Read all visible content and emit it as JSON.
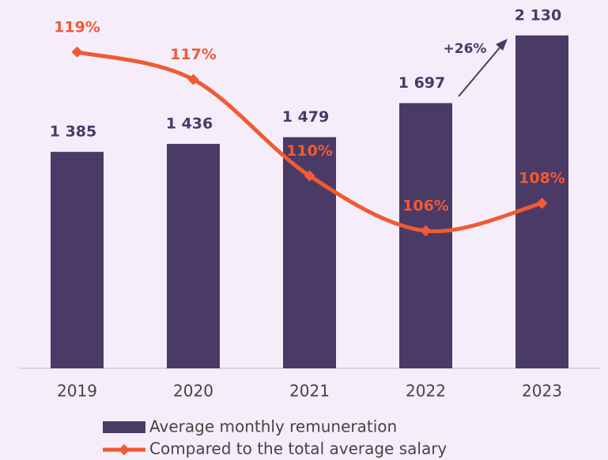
{
  "chart_data": {
    "type": "bar",
    "categories": [
      "2019",
      "2020",
      "2021",
      "2022",
      "2023"
    ],
    "series": [
      {
        "name": "Average monthly remuneration",
        "type": "bar",
        "color": "#4a3a66",
        "values": [
          1385,
          1436,
          1479,
          1697,
          2130
        ],
        "value_labels": [
          "1 385",
          "1 436",
          "1 479",
          "1 697",
          "2 130"
        ]
      },
      {
        "name": "Compared to the total average salary",
        "type": "line",
        "axis": "y2",
        "color": "#f05a34",
        "values": [
          119,
          117,
          110,
          106,
          108
        ],
        "value_labels": [
          "119%",
          "117%",
          "110%",
          "106%",
          "108%"
        ]
      }
    ],
    "ylim": [
      0,
      2200
    ],
    "y2lim": [
      96,
      121
    ],
    "annotations": [
      "+26%"
    ]
  }
}
